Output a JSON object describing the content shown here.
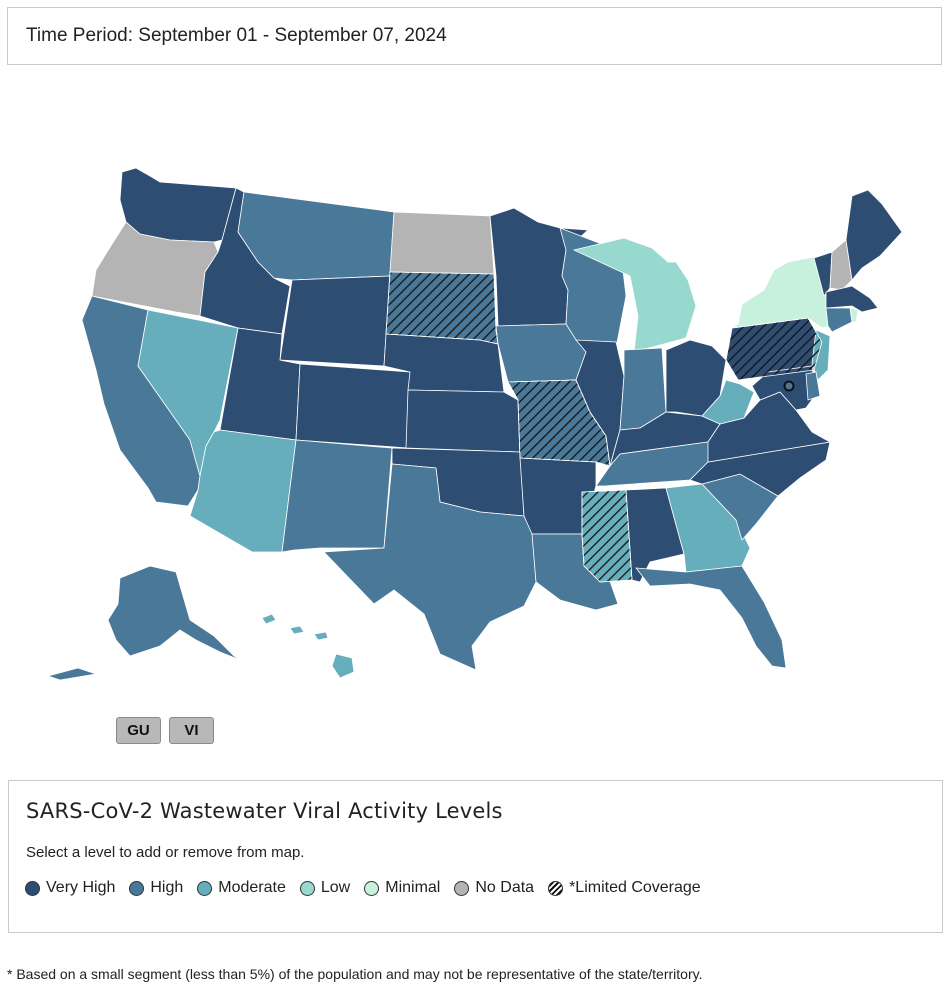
{
  "header": {
    "time_period": "Time Period: September 01 - September 07, 2024"
  },
  "colors": {
    "very_high": "#2e4d73",
    "high": "#4a7898",
    "moderate": "#66aebb",
    "low": "#98d9cf",
    "minimal": "#c8f1dd",
    "no_data": "#b4b4b4",
    "hatch": "#141414"
  },
  "map": {
    "states": [
      {
        "id": "WA",
        "level": "very_high",
        "limited": false
      },
      {
        "id": "OR",
        "level": "no_data",
        "limited": false
      },
      {
        "id": "CA",
        "level": "high",
        "limited": false
      },
      {
        "id": "NV",
        "level": "moderate",
        "limited": false
      },
      {
        "id": "ID",
        "level": "very_high",
        "limited": false
      },
      {
        "id": "MT",
        "level": "high",
        "limited": false
      },
      {
        "id": "WY",
        "level": "very_high",
        "limited": false
      },
      {
        "id": "UT",
        "level": "very_high",
        "limited": false
      },
      {
        "id": "AZ",
        "level": "moderate",
        "limited": false
      },
      {
        "id": "CO",
        "level": "very_high",
        "limited": false
      },
      {
        "id": "NM",
        "level": "high",
        "limited": false
      },
      {
        "id": "ND",
        "level": "no_data",
        "limited": false
      },
      {
        "id": "SD",
        "level": "high",
        "limited": true
      },
      {
        "id": "NE",
        "level": "very_high",
        "limited": false
      },
      {
        "id": "KS",
        "level": "very_high",
        "limited": false
      },
      {
        "id": "OK",
        "level": "very_high",
        "limited": false
      },
      {
        "id": "TX",
        "level": "high",
        "limited": false
      },
      {
        "id": "MN",
        "level": "very_high",
        "limited": false
      },
      {
        "id": "IA",
        "level": "high",
        "limited": false
      },
      {
        "id": "MO",
        "level": "high",
        "limited": true
      },
      {
        "id": "AR",
        "level": "very_high",
        "limited": false
      },
      {
        "id": "LA",
        "level": "high",
        "limited": false
      },
      {
        "id": "WI",
        "level": "high",
        "limited": false
      },
      {
        "id": "IL",
        "level": "very_high",
        "limited": false
      },
      {
        "id": "MI",
        "level": "low",
        "limited": false
      },
      {
        "id": "IN",
        "level": "high",
        "limited": false
      },
      {
        "id": "OH",
        "level": "very_high",
        "limited": false
      },
      {
        "id": "KY",
        "level": "very_high",
        "limited": false
      },
      {
        "id": "TN",
        "level": "high",
        "limited": false
      },
      {
        "id": "MS",
        "level": "moderate",
        "limited": true
      },
      {
        "id": "AL",
        "level": "very_high",
        "limited": false
      },
      {
        "id": "GA",
        "level": "moderate",
        "limited": false
      },
      {
        "id": "FL",
        "level": "high",
        "limited": false
      },
      {
        "id": "SC",
        "level": "high",
        "limited": false
      },
      {
        "id": "NC",
        "level": "very_high",
        "limited": false
      },
      {
        "id": "VA",
        "level": "very_high",
        "limited": false
      },
      {
        "id": "WV",
        "level": "moderate",
        "limited": false
      },
      {
        "id": "PA",
        "level": "very_high",
        "limited": true
      },
      {
        "id": "NY",
        "level": "minimal",
        "limited": false
      },
      {
        "id": "VT",
        "level": "very_high",
        "limited": false
      },
      {
        "id": "NH",
        "level": "no_data",
        "limited": false
      },
      {
        "id": "ME",
        "level": "very_high",
        "limited": false
      },
      {
        "id": "MA",
        "level": "very_high",
        "limited": false
      },
      {
        "id": "CT",
        "level": "high",
        "limited": false
      },
      {
        "id": "RI",
        "level": "minimal",
        "limited": false
      },
      {
        "id": "NJ",
        "level": "moderate",
        "limited": false
      },
      {
        "id": "MD",
        "level": "very_high",
        "limited": false
      },
      {
        "id": "DE",
        "level": "high",
        "limited": false
      },
      {
        "id": "AK",
        "level": "high",
        "limited": false
      },
      {
        "id": "HI",
        "level": "moderate",
        "limited": false
      }
    ],
    "territories": [
      {
        "label": "GU",
        "level": "no_data"
      },
      {
        "label": "VI",
        "level": "no_data"
      }
    ]
  },
  "legend": {
    "title": "SARS-CoV-2 Wastewater Viral Activity Levels",
    "instruction": "Select a level to add or remove from map.",
    "items": [
      {
        "label": "Very High",
        "level": "very_high"
      },
      {
        "label": "High",
        "level": "high"
      },
      {
        "label": "Moderate",
        "level": "moderate"
      },
      {
        "label": "Low",
        "level": "low"
      },
      {
        "label": "Minimal",
        "level": "minimal"
      },
      {
        "label": "No Data",
        "level": "no_data"
      },
      {
        "label": "*Limited Coverage",
        "level": "limited"
      }
    ]
  },
  "footnote": "* Based on a small segment (less than 5%) of the population and may not be representative of the state/territory."
}
